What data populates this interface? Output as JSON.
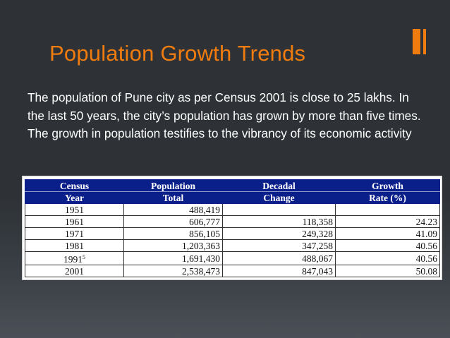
{
  "slide": {
    "title": "Population Growth Trends",
    "body": "The population of Pune city as per Census 2001 is close to 25 lakhs. In the last 50 years, the city’s population has grown by more than five times. The growth in population testifies to the vibrancy of its economic activity"
  },
  "colors": {
    "accent": "#f07c10",
    "background": "#2e3236",
    "table_header": "#0b1f8a"
  },
  "table": {
    "headers_row1": [
      "Census",
      "Population",
      "Decadal",
      "Growth"
    ],
    "headers_row2": [
      "Year",
      "Total",
      "Change",
      "Rate (%)"
    ],
    "rows": [
      {
        "year": "1951",
        "sup": "",
        "total": "488,419",
        "change": "",
        "rate": ""
      },
      {
        "year": "1961",
        "sup": "",
        "total": "606,777",
        "change": "118,358",
        "rate": "24.23"
      },
      {
        "year": "1971",
        "sup": "",
        "total": "856,105",
        "change": "249,328",
        "rate": "41.09"
      },
      {
        "year": "1981",
        "sup": "",
        "total": "1,203,363",
        "change": "347,258",
        "rate": "40.56"
      },
      {
        "year": "1991",
        "sup": "5",
        "total": "1,691,430",
        "change": "488,067",
        "rate": "40.56"
      },
      {
        "year": "2001",
        "sup": "",
        "total": "2,538,473",
        "change": "847,043",
        "rate": "50.08"
      }
    ]
  }
}
